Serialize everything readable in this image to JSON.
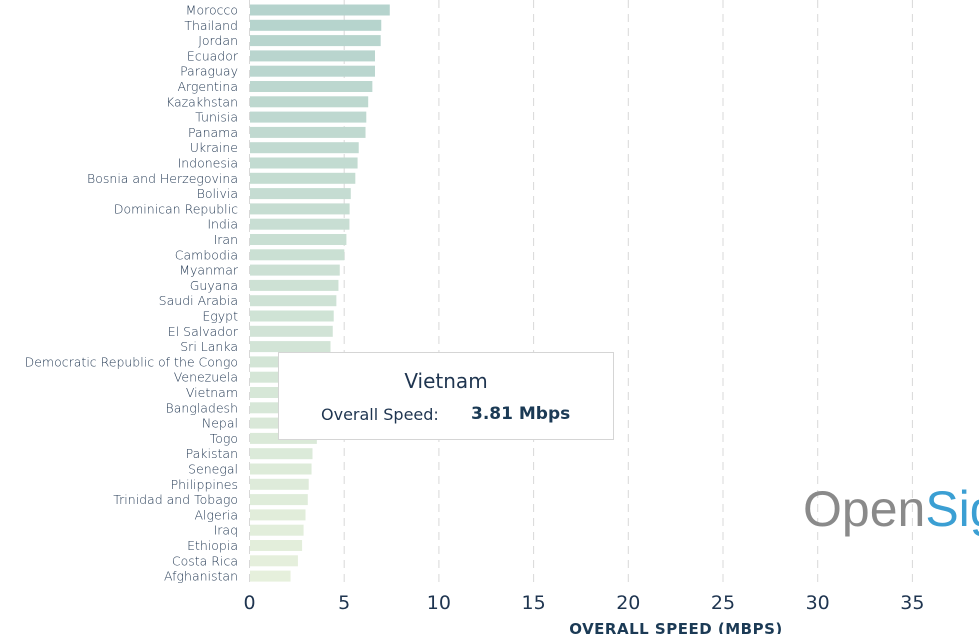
{
  "chart_data": {
    "type": "bar",
    "orientation": "horizontal",
    "xlabel": "OVERALL SPEED (MBPS)",
    "xlim": [
      0,
      35
    ],
    "xticks": [
      0,
      5,
      10,
      15,
      20,
      25,
      30,
      35
    ],
    "grid": true,
    "colors": {
      "top": "#b5d3cd",
      "bottom": "#e6f0dc",
      "text": "#1f3550"
    },
    "categories": [
      "Morocco",
      "Thailand",
      "Jordan",
      "Ecuador",
      "Paraguay",
      "Argentina",
      "Kazakhstan",
      "Tunisia",
      "Panama",
      "Ukraine",
      "Indonesia",
      "Bosnia and Herzegovina",
      "Bolivia",
      "Dominican Republic",
      "India",
      "Iran",
      "Cambodia",
      "Myanmar",
      "Guyana",
      "Saudi Arabia",
      "Egypt",
      "El Salvador",
      "Sri Lanka",
      "Democratic Republic of the Congo",
      "Venezuela",
      "Vietnam",
      "Bangladesh",
      "Nepal",
      "Togo",
      "Pakistan",
      "Senegal",
      "Philippines",
      "Trinidad and Tobago",
      "Algeria",
      "Iraq",
      "Ethiopia",
      "Costa Rica",
      "Afghanistan"
    ],
    "values": [
      7.38,
      6.93,
      6.9,
      6.6,
      6.6,
      6.46,
      6.24,
      6.14,
      6.1,
      5.74,
      5.68,
      5.56,
      5.32,
      5.26,
      5.25,
      5.09,
      4.98,
      4.74,
      4.67,
      4.56,
      4.42,
      4.37,
      4.25,
      4.1,
      3.95,
      3.81,
      3.7,
      3.6,
      3.53,
      3.3,
      3.25,
      3.1,
      3.05,
      2.93,
      2.83,
      2.75,
      2.53,
      2.14
    ]
  },
  "tooltip": {
    "title": "Vietnam",
    "key": "Overall Speed:",
    "value": "3.81 Mbps"
  },
  "logo": {
    "part1": "Open",
    "part2": "Sig"
  }
}
